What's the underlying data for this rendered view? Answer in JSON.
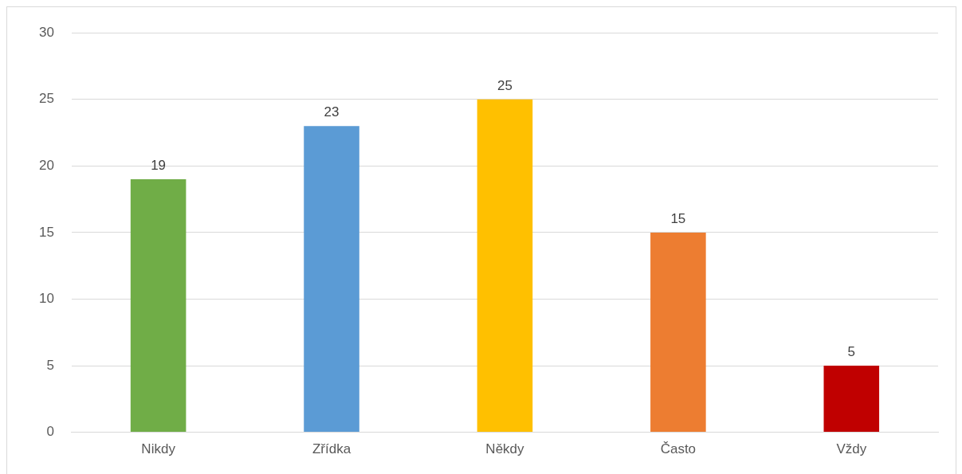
{
  "chart_data": {
    "type": "bar",
    "categories": [
      "Nikdy",
      "Zřídka",
      "Někdy",
      "Často",
      "Vždy"
    ],
    "values": [
      19,
      23,
      25,
      15,
      5
    ],
    "colors": [
      "#70ad47",
      "#5b9bd5",
      "#ffc000",
      "#ed7d31",
      "#c00000"
    ],
    "ylim": [
      0,
      30
    ],
    "yticks": [
      0,
      5,
      10,
      15,
      20,
      25,
      30
    ],
    "grid": "y",
    "data_labels": true,
    "legend": false
  }
}
